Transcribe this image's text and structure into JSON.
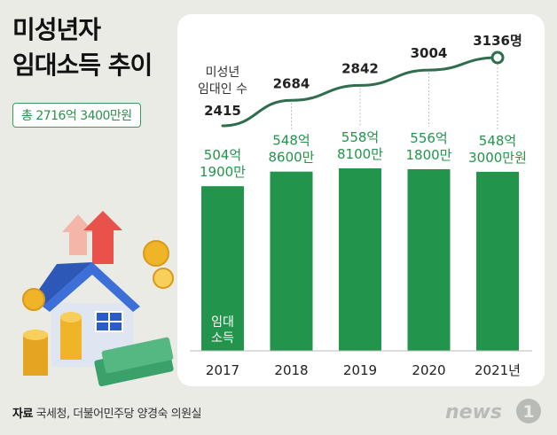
{
  "title_line1": "미성년자",
  "title_line2": "임대소득 추이",
  "total_label": "총 2716억 3400만원",
  "source_label": "자료",
  "source_text": "국세청, 더불어민주당 양경숙 의원실",
  "logo_text": "news",
  "logo_mark": "1",
  "colors": {
    "bar": "#23944b",
    "line": "#2e6e4c",
    "badge_border": "#3a9a5b",
    "background": "#e9ebe4"
  },
  "chart_data": [
    {
      "type": "bar",
      "name": "임대소득",
      "series_label": [
        "임대",
        "소득"
      ],
      "categories": [
        "2017",
        "2018",
        "2019",
        "2020",
        "2021년"
      ],
      "values": [
        504.19,
        548.86,
        558.81,
        556.18,
        548.3
      ],
      "unit": "억원",
      "data_labels": [
        [
          "504억",
          "1900만"
        ],
        [
          "548억",
          "8600만"
        ],
        [
          "558억",
          "8100만"
        ],
        [
          "556억",
          "1800만"
        ],
        [
          "548억",
          "3000만원"
        ]
      ]
    },
    {
      "type": "line",
      "name": "미성년 임대인 수",
      "series_label": [
        "미성년",
        "임대인 수"
      ],
      "categories": [
        "2017",
        "2018",
        "2019",
        "2020",
        "2021년"
      ],
      "values": [
        2415,
        2684,
        2842,
        3004,
        3136
      ],
      "data_labels": [
        "2415",
        "2684",
        "2842",
        "3004",
        "3136명"
      ]
    }
  ]
}
